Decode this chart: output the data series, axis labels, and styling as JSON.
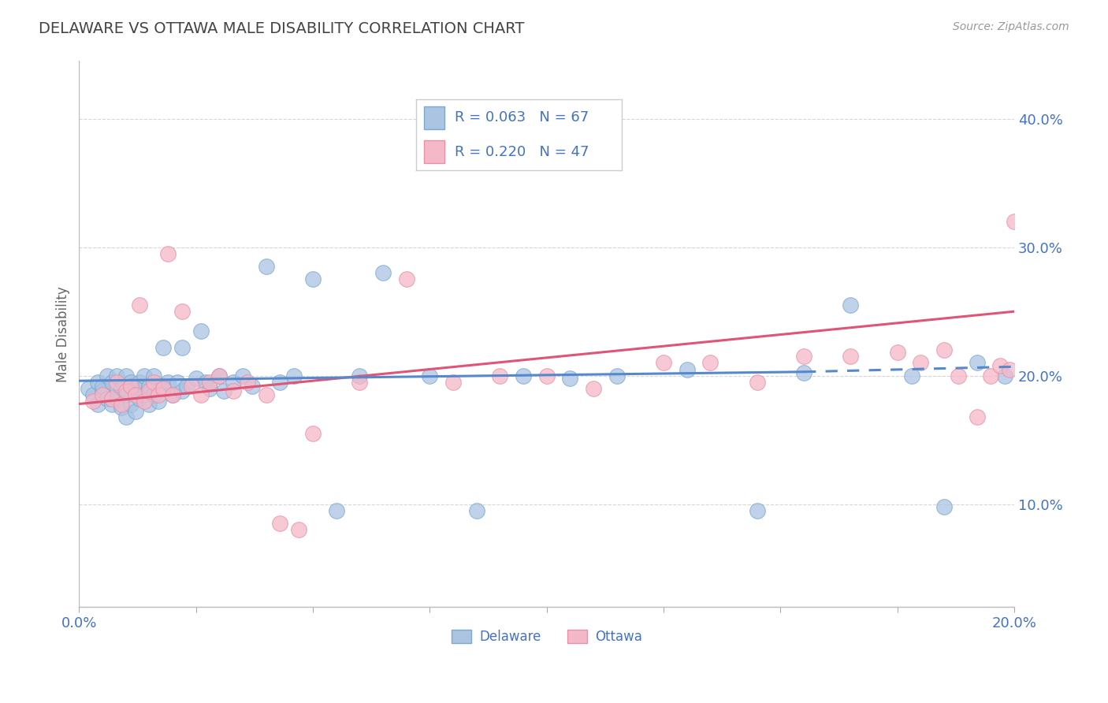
{
  "title": "DELAWARE VS OTTAWA MALE DISABILITY CORRELATION CHART",
  "source": "Source: ZipAtlas.com",
  "ylabel": "Male Disability",
  "xlim": [
    0.0,
    0.2
  ],
  "ylim": [
    0.02,
    0.445
  ],
  "yticks": [
    0.1,
    0.2,
    0.3,
    0.4
  ],
  "ytick_labels": [
    "10.0%",
    "20.0%",
    "30.0%",
    "40.0%"
  ],
  "xticks": [
    0.0,
    0.025,
    0.05,
    0.075,
    0.1,
    0.125,
    0.15,
    0.175,
    0.2
  ],
  "R_delaware": 0.063,
  "N_delaware": 67,
  "R_ottawa": 0.22,
  "N_ottawa": 47,
  "color_delaware_fill": "#aac4e2",
  "color_delaware_edge": "#7aaad0",
  "color_ottawa_fill": "#f5b8c8",
  "color_ottawa_edge": "#e890a8",
  "color_line_delaware": "#5588cc",
  "color_line_ottawa": "#dd5577",
  "color_title": "#555555",
  "color_axis_label": "#4472c4",
  "background": "#ffffff",
  "grid_color": "#cccccc",
  "legend_label_delaware": "Delaware",
  "legend_label_ottawa": "Ottawa",
  "del_x": [
    0.002,
    0.003,
    0.004,
    0.004,
    0.005,
    0.005,
    0.006,
    0.006,
    0.007,
    0.007,
    0.008,
    0.008,
    0.009,
    0.009,
    0.01,
    0.01,
    0.01,
    0.011,
    0.011,
    0.012,
    0.012,
    0.013,
    0.013,
    0.014,
    0.014,
    0.015,
    0.015,
    0.016,
    0.016,
    0.017,
    0.018,
    0.018,
    0.019,
    0.02,
    0.021,
    0.022,
    0.022,
    0.023,
    0.025,
    0.026,
    0.027,
    0.028,
    0.03,
    0.031,
    0.033,
    0.035,
    0.037,
    0.04,
    0.043,
    0.046,
    0.05,
    0.055,
    0.06,
    0.065,
    0.075,
    0.085,
    0.095,
    0.105,
    0.115,
    0.13,
    0.145,
    0.155,
    0.165,
    0.178,
    0.185,
    0.192,
    0.198
  ],
  "del_y": [
    0.19,
    0.185,
    0.195,
    0.178,
    0.188,
    0.192,
    0.182,
    0.2,
    0.178,
    0.195,
    0.182,
    0.2,
    0.175,
    0.19,
    0.168,
    0.185,
    0.2,
    0.178,
    0.195,
    0.172,
    0.19,
    0.182,
    0.195,
    0.185,
    0.2,
    0.178,
    0.192,
    0.185,
    0.2,
    0.18,
    0.192,
    0.222,
    0.195,
    0.185,
    0.195,
    0.188,
    0.222,
    0.192,
    0.198,
    0.235,
    0.195,
    0.19,
    0.2,
    0.188,
    0.195,
    0.2,
    0.192,
    0.285,
    0.195,
    0.2,
    0.275,
    0.095,
    0.2,
    0.28,
    0.2,
    0.095,
    0.2,
    0.198,
    0.2,
    0.205,
    0.095,
    0.202,
    0.255,
    0.2,
    0.098,
    0.21,
    0.2
  ],
  "ott_x": [
    0.003,
    0.005,
    0.007,
    0.008,
    0.009,
    0.01,
    0.011,
    0.012,
    0.013,
    0.014,
    0.015,
    0.016,
    0.017,
    0.018,
    0.019,
    0.02,
    0.022,
    0.024,
    0.026,
    0.028,
    0.03,
    0.033,
    0.036,
    0.04,
    0.043,
    0.047,
    0.05,
    0.06,
    0.07,
    0.08,
    0.09,
    0.1,
    0.11,
    0.125,
    0.135,
    0.145,
    0.155,
    0.165,
    0.175,
    0.18,
    0.185,
    0.188,
    0.192,
    0.195,
    0.197,
    0.199,
    0.2
  ],
  "ott_y": [
    0.18,
    0.185,
    0.182,
    0.195,
    0.178,
    0.188,
    0.192,
    0.185,
    0.255,
    0.18,
    0.188,
    0.195,
    0.185,
    0.19,
    0.295,
    0.185,
    0.25,
    0.192,
    0.185,
    0.195,
    0.2,
    0.188,
    0.195,
    0.185,
    0.085,
    0.08,
    0.155,
    0.195,
    0.275,
    0.195,
    0.2,
    0.2,
    0.19,
    0.21,
    0.21,
    0.195,
    0.215,
    0.215,
    0.218,
    0.21,
    0.22,
    0.2,
    0.168,
    0.2,
    0.208,
    0.205,
    0.32
  ],
  "line_del_x0": 0.0,
  "line_del_x1": 0.155,
  "line_del_x1_dash": 0.2,
  "line_del_y0": 0.196,
  "line_del_y1": 0.203,
  "line_del_y1_dash": 0.207,
  "line_ott_x0": 0.0,
  "line_ott_x1": 0.2,
  "line_ott_y0": 0.178,
  "line_ott_y1": 0.25
}
